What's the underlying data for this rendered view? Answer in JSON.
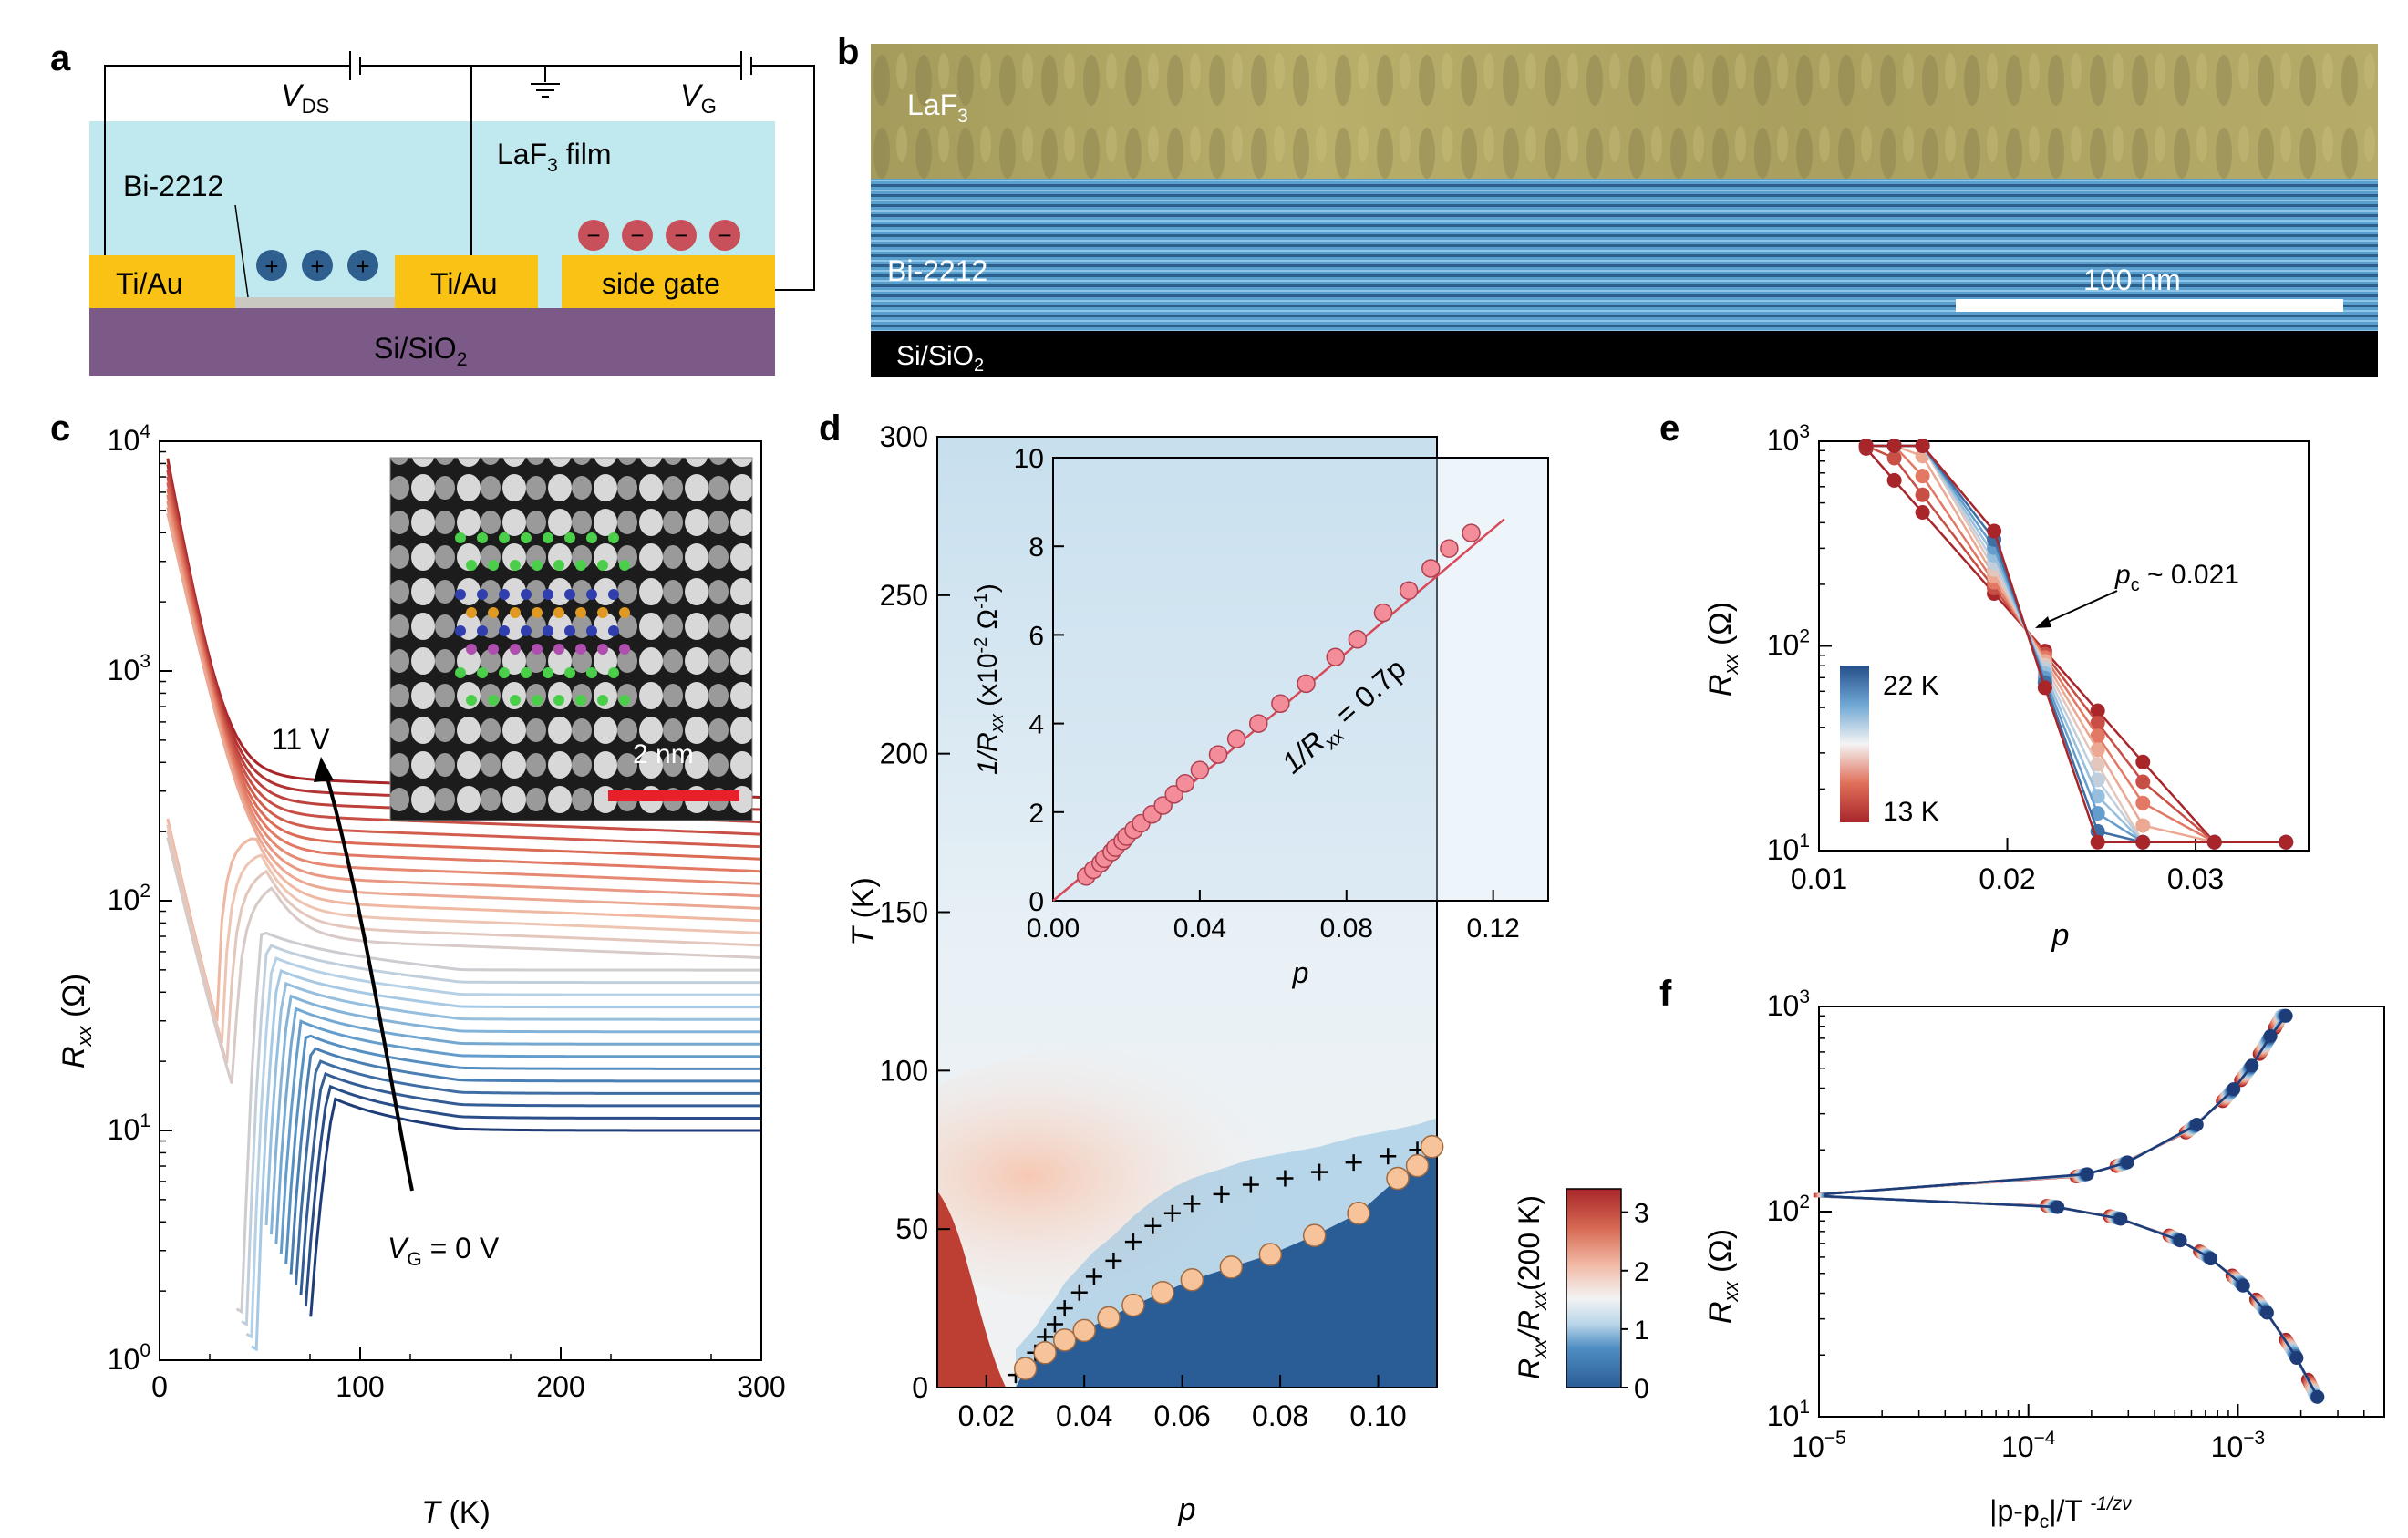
{
  "panel_labels": {
    "a": "a",
    "b": "b",
    "c": "c",
    "d": "d",
    "e": "e",
    "f": "f"
  },
  "panel_a": {
    "vds": "V",
    "vds_sub": "DS",
    "vg": "V",
    "vg_sub": "G",
    "film": "LaF",
    "film_sub": "3",
    "film_tail": " film",
    "bi": "Bi-2212",
    "tiau_left": "Ti/Au",
    "tiau_mid": "Ti/Au",
    "side_gate": "side gate",
    "substrate": "Si/SiO",
    "substrate_sub": "2",
    "plus": "+",
    "minus": "−",
    "colors": {
      "film": "#bfe9ef",
      "electrode": "#f9c215",
      "substrate": "#7b5a88",
      "plus_ball": "#2f5f8f",
      "minus_ball": "#c8505a"
    }
  },
  "panel_b": {
    "laf3": "LaF",
    "laf3_sub": "3",
    "bi": "Bi-2212",
    "si": "Si/SiO",
    "si_sub": "2",
    "scale": "100 nm"
  },
  "panel_c": {
    "ylabel_main": "R",
    "ylabel_sub": "xx",
    "ylabel_unit": " (Ω)",
    "xlabel_main": "T",
    "xlabel_unit": " (K)",
    "yticks": [
      {
        "base": "10",
        "exp": "4"
      },
      {
        "base": "10",
        "exp": "3"
      },
      {
        "base": "10",
        "exp": "2"
      },
      {
        "base": "10",
        "exp": "1"
      },
      {
        "base": "10",
        "exp": "0"
      }
    ],
    "xticks": [
      "0",
      "100",
      "200",
      "300"
    ],
    "annot_top": "11 V",
    "annot_bottom_main": "V",
    "annot_bottom_sub": "G",
    "annot_bottom_tail": " = 0 V",
    "inset_scale": "2 nm",
    "chart_data": {
      "type": "line",
      "x_range": [
        0,
        300
      ],
      "y_range": [
        1,
        10000
      ],
      "y_scale": "log",
      "n_curves": 28
    }
  },
  "panel_d": {
    "ylabel": "T",
    "ylabel_unit": " (K)",
    "xlabel": "p",
    "yticks": [
      "300",
      "250",
      "200",
      "150",
      "100",
      "50",
      "0"
    ],
    "xticks": [
      "0.02",
      "0.04",
      "0.06",
      "0.08",
      "0.10"
    ],
    "cbar_ticks": [
      "3",
      "2",
      "1",
      "0"
    ],
    "cbar_label": "R",
    "cbar_label_sub": "xx",
    "cbar_label_mid": "/R",
    "cbar_label_sub2": "xx",
    "cbar_label_tail": "(200 K)",
    "inset": {
      "ylabel": "1/R",
      "ylabel_sub": "xx",
      "ylabel_tail": " (x10",
      "ylabel_exp": "-2",
      "ylabel_unit": " Ω",
      "ylabel_exp2": "-1",
      "ylabel_close": ")",
      "xlabel": "p",
      "yticks": [
        "0",
        "2",
        "4",
        "6",
        "8",
        "10"
      ],
      "xticks": [
        "0.00",
        "0.04",
        "0.08",
        "0.12"
      ],
      "fit": "1/R",
      "fit_sub": "xx",
      "fit_tail": " = 0.7p"
    },
    "chart_data": {
      "type": "heatmap",
      "x_range": [
        0.01,
        0.112
      ],
      "y_range": [
        0,
        300
      ],
      "colorbar_range": [
        0,
        3.4
      ],
      "circles": {
        "x": [
          0.028,
          0.032,
          0.036,
          0.04,
          0.045,
          0.05,
          0.056,
          0.062,
          0.07,
          0.078,
          0.087,
          0.096,
          0.104,
          0.108,
          0.111
        ],
        "y": [
          6,
          11,
          15,
          18,
          22,
          26,
          30,
          34,
          38,
          42,
          48,
          55,
          66,
          70,
          76
        ]
      },
      "crosses": {
        "x": [
          0.026,
          0.03,
          0.032,
          0.034,
          0.036,
          0.039,
          0.042,
          0.046,
          0.05,
          0.054,
          0.058,
          0.062,
          0.068,
          0.074,
          0.081,
          0.088,
          0.095,
          0.102,
          0.108
        ],
        "y": [
          4,
          11,
          16,
          20,
          25,
          30,
          35,
          40,
          46,
          51,
          55,
          58,
          61,
          64,
          66,
          68,
          71,
          73,
          75
        ]
      },
      "inset": {
        "type": "scatter",
        "x_range": [
          0,
          0.135
        ],
        "y_range": [
          0,
          10
        ],
        "slope": 0.7,
        "x": [
          0.009,
          0.011,
          0.013,
          0.014,
          0.016,
          0.017,
          0.019,
          0.02,
          0.022,
          0.024,
          0.027,
          0.03,
          0.033,
          0.036,
          0.04,
          0.045,
          0.05,
          0.056,
          0.062,
          0.069,
          0.077,
          0.083,
          0.09,
          0.097,
          0.103,
          0.108,
          0.114
        ],
        "y": [
          0.55,
          0.7,
          0.85,
          0.95,
          1.1,
          1.2,
          1.35,
          1.45,
          1.6,
          1.75,
          1.95,
          2.15,
          2.4,
          2.65,
          2.95,
          3.3,
          3.65,
          4.0,
          4.45,
          4.9,
          5.5,
          5.9,
          6.5,
          7.0,
          7.5,
          7.95,
          8.3
        ]
      }
    }
  },
  "panel_e": {
    "ylabel_main": "R",
    "ylabel_sub": "xx",
    "ylabel_unit": " (Ω)",
    "xlabel": "p",
    "yticks": [
      {
        "base": "10",
        "exp": "3"
      },
      {
        "base": "10",
        "exp": "2"
      },
      {
        "base": "10",
        "exp": "1"
      }
    ],
    "xticks": [
      "0.01",
      "0.02",
      "0.03"
    ],
    "pc_main": "p",
    "pc_sub": "c",
    "pc_tail": " ~ 0.021",
    "legend_top": "22 K",
    "legend_bottom": "13 K",
    "chart_data": {
      "type": "line",
      "x": [
        0.0125,
        0.014,
        0.0155,
        0.0193,
        0.022,
        0.0248,
        0.0272,
        0.031,
        0.0348
      ],
      "x_range": [
        0.01,
        0.036
      ],
      "y_range": [
        10,
        1000
      ],
      "y_scale": "log",
      "crossing_p": 0.021,
      "T_range_K": [
        13,
        22
      ],
      "n_curves": 10
    }
  },
  "panel_f": {
    "ylabel_main": "R",
    "ylabel_sub": "xx",
    "ylabel_unit": " (Ω)",
    "xlabel": "|p-p",
    "xlabel_sub": "c",
    "xlabel_mid": "|/T ",
    "xlabel_exp": "-1/zν",
    "yticks": [
      {
        "base": "10",
        "exp": "3"
      },
      {
        "base": "10",
        "exp": "2"
      },
      {
        "base": "10",
        "exp": "1"
      }
    ],
    "xticks": [
      {
        "base": "10",
        "exp": "−5"
      },
      {
        "base": "10",
        "exp": "−4"
      },
      {
        "base": "10",
        "exp": "−3"
      }
    ],
    "chart_data": {
      "type": "scatter",
      "x_scale": "log",
      "y_scale": "log",
      "x_range": [
        1e-05,
        0.005
      ],
      "y_range": [
        10,
        1000
      ],
      "collapse_value": 120
    }
  }
}
